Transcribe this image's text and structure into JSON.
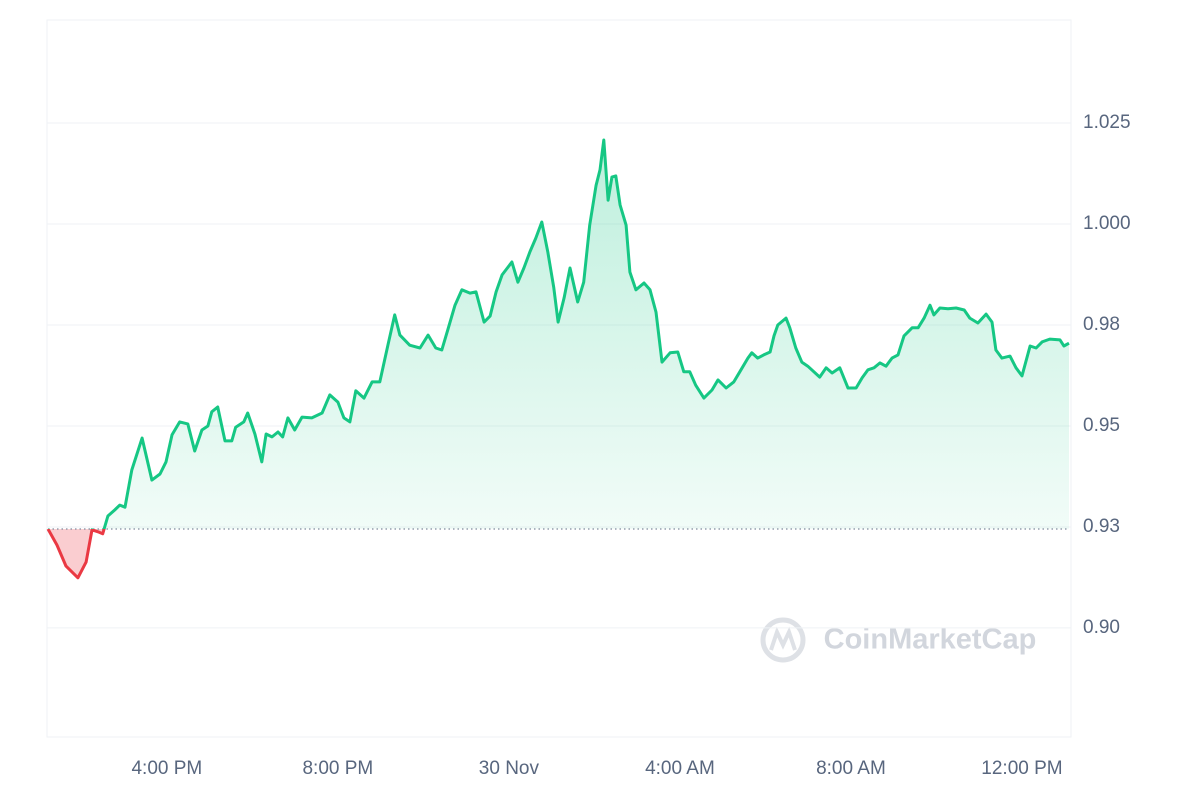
{
  "chart_data": {
    "type": "line",
    "x": [
      13.22,
      13.43,
      13.64,
      13.92,
      14.11,
      14.25,
      14.39,
      14.5,
      14.62,
      14.78,
      14.9,
      15.02,
      15.18,
      15.42,
      15.65,
      15.84,
      15.98,
      16.12,
      16.3,
      16.49,
      16.65,
      16.82,
      16.96,
      17.05,
      17.19,
      17.36,
      17.52,
      17.61,
      17.8,
      17.89,
      18.06,
      18.22,
      18.32,
      18.46,
      18.6,
      18.71,
      18.83,
      18.99,
      19.16,
      19.39,
      19.63,
      19.81,
      20.0,
      20.14,
      20.28,
      20.42,
      20.61,
      20.8,
      20.98,
      21.17,
      21.33,
      21.45,
      21.68,
      21.92,
      22.11,
      22.29,
      22.43,
      22.57,
      22.74,
      22.9,
      23.09,
      23.23,
      23.42,
      23.56,
      23.7,
      23.84,
      24.07,
      24.21,
      24.35,
      24.49,
      24.63,
      24.77,
      24.91,
      25.05,
      25.15,
      25.29,
      25.43,
      25.61,
      25.75,
      25.89,
      26.04,
      26.13,
      26.22,
      26.32,
      26.41,
      26.5,
      26.6,
      26.74,
      26.83,
      26.97,
      27.16,
      27.3,
      27.44,
      27.58,
      27.77,
      27.95,
      28.09,
      28.23,
      28.37,
      28.56,
      28.75,
      28.89,
      29.08,
      29.26,
      29.4,
      29.59,
      29.68,
      29.82,
      29.96,
      30.11,
      30.2,
      30.29,
      30.48,
      30.57,
      30.71,
      30.85,
      30.99,
      31.27,
      31.42,
      31.56,
      31.74,
      31.93,
      32.12,
      32.26,
      32.4,
      32.54,
      32.68,
      32.82,
      32.96,
      33.1,
      33.24,
      33.43,
      33.57,
      33.71,
      33.85,
      33.94,
      34.08,
      34.27,
      34.46,
      34.65,
      34.78,
      34.97,
      35.16,
      35.3,
      35.39,
      35.53,
      35.72,
      35.86,
      36.0,
      36.19,
      36.33,
      36.47,
      36.65,
      36.89,
      36.98,
      37.1
    ],
    "values": [
      0.9245,
      0.9205,
      0.9153,
      0.9124,
      0.9163,
      0.9243,
      0.9238,
      0.9233,
      0.9277,
      0.9292,
      0.9304,
      0.9299,
      0.9391,
      0.947,
      0.9366,
      0.9381,
      0.9411,
      0.9478,
      0.951,
      0.9505,
      0.9438,
      0.949,
      0.95,
      0.9535,
      0.9547,
      0.9463,
      0.9463,
      0.9497,
      0.951,
      0.9532,
      0.948,
      0.9411,
      0.948,
      0.9473,
      0.9485,
      0.9473,
      0.952,
      0.949,
      0.9522,
      0.952,
      0.9532,
      0.9577,
      0.9559,
      0.952,
      0.951,
      0.9587,
      0.9569,
      0.9609,
      0.9609,
      0.97,
      0.9775,
      0.9725,
      0.97,
      0.9693,
      0.9725,
      0.9693,
      0.9688,
      0.9738,
      0.9799,
      0.9837,
      0.9829,
      0.9832,
      0.9757,
      0.9772,
      0.9832,
      0.9874,
      0.9906,
      0.9856,
      0.9891,
      0.9931,
      0.9965,
      1.0005,
      0.9931,
      0.9842,
      0.9757,
      0.9817,
      0.9891,
      0.9807,
      0.9856,
      0.9997,
      1.0096,
      1.0134,
      1.0208,
      1.0059,
      1.0116,
      1.0119,
      1.0047,
      0.9997,
      0.9881,
      0.9837,
      0.9854,
      0.9837,
      0.9782,
      0.9658,
      0.9681,
      0.9683,
      0.9634,
      0.9634,
      0.9601,
      0.9569,
      0.9589,
      0.9614,
      0.9594,
      0.9609,
      0.9634,
      0.9668,
      0.9681,
      0.9668,
      0.9676,
      0.9683,
      0.9723,
      0.975,
      0.9767,
      0.9743,
      0.9693,
      0.9658,
      0.9648,
      0.9621,
      0.9644,
      0.9631,
      0.9644,
      0.9594,
      0.9594,
      0.9619,
      0.9639,
      0.9644,
      0.9656,
      0.9648,
      0.9668,
      0.9676,
      0.9723,
      0.9743,
      0.9743,
      0.9767,
      0.9799,
      0.9775,
      0.9792,
      0.979,
      0.9792,
      0.9787,
      0.9767,
      0.9755,
      0.9777,
      0.9757,
      0.9688,
      0.9668,
      0.9673,
      0.9644,
      0.9624,
      0.9698,
      0.9693,
      0.9708,
      0.9715,
      0.9713,
      0.9698,
      0.9705
    ],
    "color": "#16c784",
    "below_color": "#ea3943",
    "baseline": 0.9245,
    "xlim": [
      13.22,
      37.1
    ],
    "xticks": [
      {
        "value": 16,
        "label": "4:00 PM"
      },
      {
        "value": 20,
        "label": "8:00 PM"
      },
      {
        "value": 24,
        "label": "30 Nov"
      },
      {
        "value": 28,
        "label": "4:00 AM"
      },
      {
        "value": 32,
        "label": "8:00 AM"
      },
      {
        "value": 36,
        "label": "12:00 PM"
      }
    ],
    "ylim": [
      0.873,
      1.0505
    ],
    "yticks": [
      {
        "value": 0.9,
        "label": "0.90"
      },
      {
        "value": 0.925,
        "label": "0.93"
      },
      0.95,
      {
        "value": 0.975,
        "label": "0.98"
      },
      {
        "value": 1.0,
        "label": "1.000"
      },
      1.025
    ],
    "grid": true,
    "watermark": "CoinMarketCap"
  }
}
